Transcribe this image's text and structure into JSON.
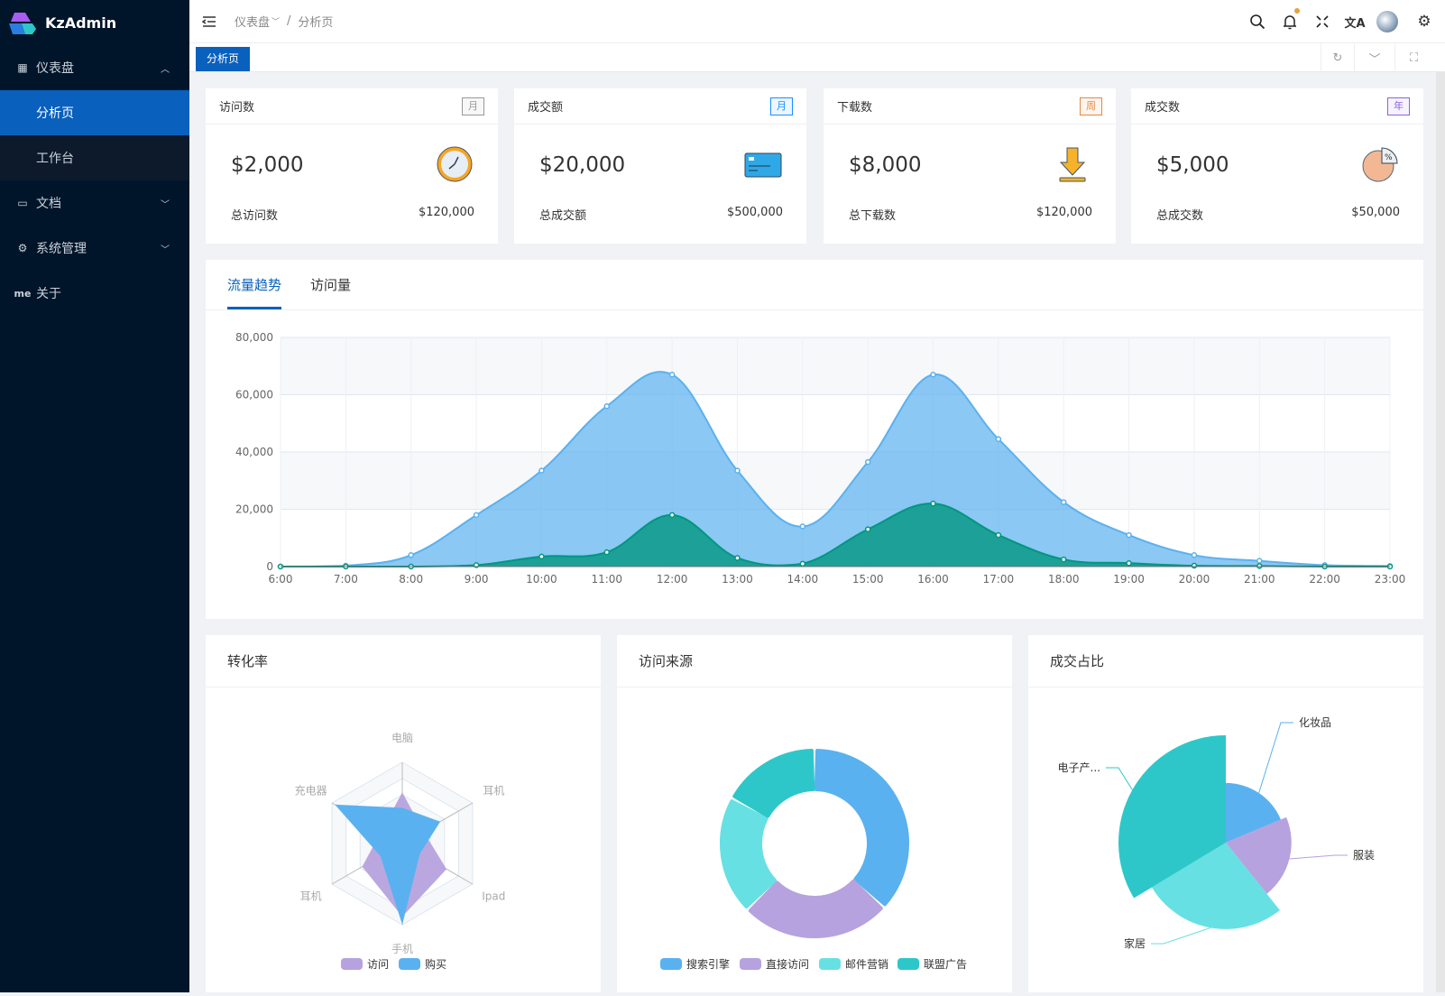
{
  "app": {
    "name": "KzAdmin"
  },
  "sidebar": {
    "items": [
      {
        "label": "仪表盘",
        "icon": "dashboard-icon",
        "expanded": true,
        "children": [
          {
            "label": "分析页",
            "active": true
          },
          {
            "label": "工作台"
          }
        ]
      },
      {
        "label": "文档",
        "icon": "monitor-icon"
      },
      {
        "label": "系统管理",
        "icon": "gear-icon"
      },
      {
        "label": "关于",
        "icon_text": "me"
      }
    ]
  },
  "header": {
    "breadcrumb": [
      "仪表盘",
      "/",
      "分析页"
    ],
    "icons": [
      "menu-fold-icon",
      "search-icon",
      "bell-icon",
      "fullscreen-icon",
      "translate-icon",
      "avatar",
      "settings-icon"
    ],
    "notify_dot_color": "#e6a23c"
  },
  "tabs": {
    "items": [
      "分析页"
    ],
    "icons": [
      "refresh-icon",
      "chevron-down-icon",
      "fullscreen-icon"
    ]
  },
  "stats": [
    {
      "title": "访问数",
      "badge": "月",
      "badge_color": "#999999",
      "value": "$2,000",
      "icon": "clock-icon",
      "foot_label": "总访问数",
      "foot_value": "$120,000"
    },
    {
      "title": "成交额",
      "badge": "月",
      "badge_color": "#1890ff",
      "value": "$20,000",
      "icon": "credit-card-icon",
      "foot_label": "总成交额",
      "foot_value": "$500,000"
    },
    {
      "title": "下载数",
      "badge": "周",
      "badge_color": "#e6883c",
      "value": "$8,000",
      "icon": "download-icon",
      "foot_label": "总下载数",
      "foot_value": "$120,000"
    },
    {
      "title": "成交数",
      "badge": "年",
      "badge_color": "#9061e0",
      "value": "$5,000",
      "icon": "pie-percent-icon",
      "foot_label": "总成交数",
      "foot_value": "$50,000"
    }
  ],
  "trend": {
    "tabs": [
      "流量趋势",
      "访问量"
    ],
    "active_tab": 0
  },
  "chart_data": [
    {
      "type": "area",
      "x": [
        "6:00",
        "7:00",
        "8:00",
        "9:00",
        "10:00",
        "11:00",
        "12:00",
        "13:00",
        "14:00",
        "15:00",
        "16:00",
        "17:00",
        "18:00",
        "19:00",
        "20:00",
        "21:00",
        "22:00",
        "23:00"
      ],
      "yticks": [
        "0",
        "20,000",
        "40,000",
        "60,000",
        "80,000"
      ],
      "ylim": [
        0,
        80000
      ],
      "grid": true,
      "series": [
        {
          "values": [
            0,
            300,
            4000,
            18000,
            33500,
            56000,
            67000,
            33500,
            14000,
            36500,
            67000,
            44500,
            22500,
            11000,
            4000,
            2000,
            500,
            200
          ],
          "color": "#5ab1ef"
        },
        {
          "values": [
            0,
            0,
            0,
            500,
            3500,
            5000,
            18000,
            3000,
            1000,
            13000,
            22000,
            11000,
            2500,
            1200,
            300,
            200,
            0,
            0
          ],
          "color": "#019680"
        }
      ]
    },
    {
      "type": "radar",
      "title": "转化率",
      "indicators": [
        "电脑",
        "耳机",
        "Ipad",
        "手机",
        "耳机",
        "充电器"
      ],
      "max": 100,
      "series": [
        {
          "name": "访问",
          "values": [
            63,
            30,
            63,
            90,
            57,
            30
          ],
          "color": "#b6a2de"
        },
        {
          "name": "购买",
          "values": [
            44,
            54,
            25,
            100,
            31,
            96
          ],
          "color": "#5ab1ef"
        }
      ]
    },
    {
      "type": "pie",
      "title": "访问来源",
      "donut": true,
      "series": [
        {
          "name": "搜索引擎",
          "value": 1048,
          "color": "#5ab1ef"
        },
        {
          "name": "直接访问",
          "value": 735,
          "color": "#b6a2de"
        },
        {
          "name": "邮件营销",
          "value": 580,
          "color": "#67e0e3"
        },
        {
          "name": "联盟广告",
          "value": 484,
          "color": "#2ec7c9"
        }
      ]
    },
    {
      "type": "pie",
      "title": "成交占比",
      "rose": true,
      "series": [
        {
          "name": "化妆品",
          "value": 20,
          "color": "#5ab1ef"
        },
        {
          "name": "服装",
          "value": 22,
          "color": "#b6a2de"
        },
        {
          "name": "家居",
          "value": 29,
          "color": "#67e0e3"
        },
        {
          "name": "电子产...",
          "value": 36,
          "color": "#2ec7c9"
        }
      ]
    }
  ]
}
